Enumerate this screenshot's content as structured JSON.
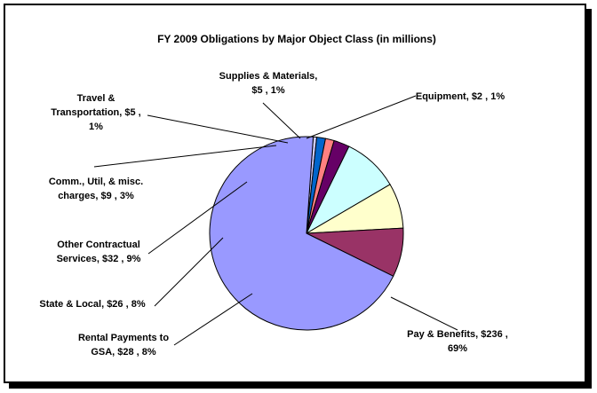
{
  "chart_data": {
    "type": "pie",
    "title": "FY 2009 Obligations by Major Object Class (in millions)",
    "slices": [
      {
        "label": "Pay & Benefits",
        "value": 236,
        "percent": "69%",
        "display": [
          "Pay & Benefits, $236 ,",
          "69%"
        ],
        "color": "#9999ff"
      },
      {
        "label": "Rental Payments to GSA",
        "value": 28,
        "percent": "8%",
        "display": [
          "Rental Payments to",
          "GSA, $28 , 8%"
        ],
        "color": "#993366"
      },
      {
        "label": "State & Local",
        "value": 26,
        "percent": "8%",
        "display": [
          "State & Local, $26 , 8%"
        ],
        "color": "#ffffcc"
      },
      {
        "label": "Other Contractual Services",
        "value": 32,
        "percent": "9%",
        "display": [
          "Other Contractual",
          "Services, $32 , 9%"
        ],
        "color": "#ccffff"
      },
      {
        "label": "Comm., Util, & misc. charges",
        "value": 9,
        "percent": "3%",
        "display": [
          "Comm., Util, & misc.",
          "charges, $9 , 3%"
        ],
        "color": "#660066"
      },
      {
        "label": "Travel & Transportation",
        "value": 5,
        "percent": "1%",
        "display": [
          "Travel &",
          "Transportation, $5 ,",
          "1%"
        ],
        "color": "#ff8080"
      },
      {
        "label": "Supplies & Materials",
        "value": 5,
        "percent": "1%",
        "display": [
          "Supplies & Materials,",
          "$5 , 1%"
        ],
        "color": "#0066cc"
      },
      {
        "label": "Equipment",
        "value": 2,
        "percent": "1%",
        "display": [
          "Equipment, $2 , 1%"
        ],
        "color": "#ccccff"
      }
    ],
    "legend": "none",
    "start_angle_deg": 0,
    "direction": "clockwise"
  }
}
